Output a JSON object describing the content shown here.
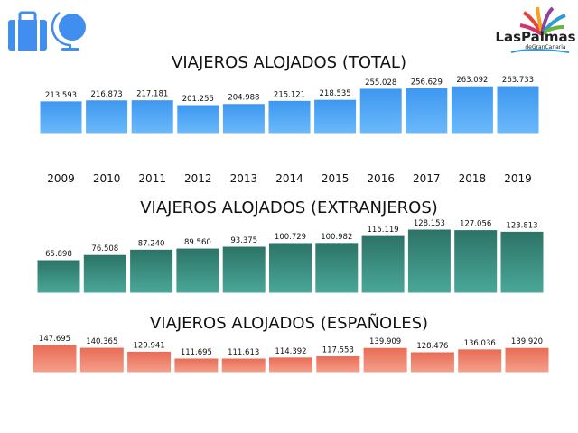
{
  "header": {
    "icons": [
      "suitcase-icon",
      "globe-icon"
    ],
    "logo_text": "LasPalmas",
    "logo_subtext": "deGranCanaria",
    "icon_color": "#3f8ef0"
  },
  "chart_data": [
    {
      "type": "bar",
      "title": "VIAJEROS ALOJADOS (TOTAL)",
      "categories": [
        "2009",
        "2010",
        "2011",
        "2012",
        "2013",
        "2014",
        "2015",
        "2016",
        "2017",
        "2018",
        "2019"
      ],
      "values": [
        213593,
        216873,
        217181,
        201255,
        204988,
        215121,
        218535,
        255028,
        256629,
        263092,
        263733
      ],
      "data_labels": [
        "213.593",
        "216.873",
        "217.181",
        "201.255",
        "204.988",
        "215.121",
        "218.535",
        "255.028",
        "256.629",
        "263.092",
        "263.733"
      ],
      "show_category_labels": true,
      "colors": [
        "#3d97f0",
        "#6ab9fa"
      ],
      "grid": false
    },
    {
      "type": "bar",
      "title": "VIAJEROS ALOJADOS (EXTRANJEROS)",
      "categories": [
        "2009",
        "2010",
        "2011",
        "2012",
        "2013",
        "2014",
        "2015",
        "2016",
        "2017",
        "2018",
        "2019"
      ],
      "values": [
        65898,
        76508,
        87240,
        89560,
        93375,
        100729,
        100982,
        115119,
        128153,
        127056,
        123813
      ],
      "data_labels": [
        "65.898",
        "76.508",
        "87.240",
        "89.560",
        "93.375",
        "100.729",
        "100.982",
        "115.119",
        "128.153",
        "127.056",
        "123.813"
      ],
      "show_category_labels": false,
      "colors": [
        "#2c7366",
        "#4aa899"
      ],
      "grid": false
    },
    {
      "type": "bar",
      "title": "VIAJEROS ALOJADOS (ESPAÑOLES)",
      "categories": [
        "2009",
        "2010",
        "2011",
        "2012",
        "2013",
        "2014",
        "2015",
        "2016",
        "2017",
        "2018",
        "2019"
      ],
      "values": [
        147695,
        140365,
        129941,
        111695,
        111613,
        114392,
        117553,
        139909,
        128476,
        136036,
        139920
      ],
      "data_labels": [
        "147.695",
        "140.365",
        "129.941",
        "111.695",
        "111.613",
        "114.392",
        "117.553",
        "139.909",
        "128.476",
        "136.036",
        "139.920"
      ],
      "show_category_labels": false,
      "colors": [
        "#e86b55",
        "#f4a08b"
      ],
      "grid": false
    }
  ]
}
